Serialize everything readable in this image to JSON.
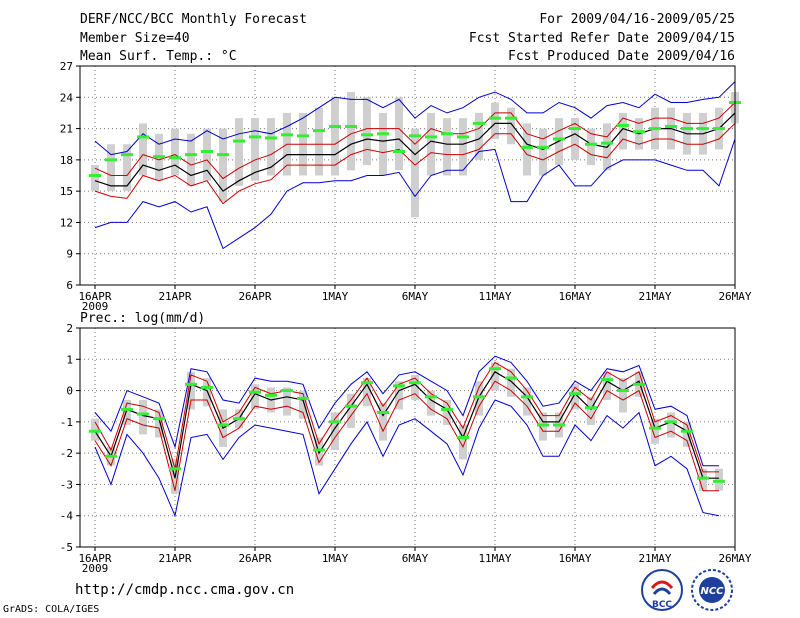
{
  "header": {
    "title": "DERF/NCC/BCC Monthly Forecast",
    "member_size": "Member Size=40",
    "var1": "Mean Surf. Temp.: °C",
    "period": "For 2009/04/16-2009/05/25",
    "refer_date": "Fcst Started Refer Date 2009/04/15",
    "produced_date": "Fcst Produced Date 2009/04/16"
  },
  "panel2_label": "Prec.: log(mm/d)",
  "footer": {
    "url": "http://cmdp.ncc.cma.gov.cn",
    "grads": "GrADS: COLA/IGES",
    "logo_left": "BCC",
    "logo_right": "NCC"
  },
  "colors": {
    "mean": "#000000",
    "spread": "#cc0000",
    "envelope": "#0000cc",
    "box": "#cfcfcf",
    "marker": "#33ee33"
  },
  "chart_data": [
    {
      "type": "line",
      "title": "Mean Surf. Temp.: °C",
      "x_tick_labels": [
        "16APR",
        "21APR",
        "26APR",
        "1MAY",
        "6MAY",
        "11MAY",
        "16MAY",
        "21MAY",
        "26MAY"
      ],
      "x_year_label": "2009",
      "ylim": [
        6,
        27
      ],
      "y_ticks": [
        6,
        9,
        12,
        15,
        18,
        21,
        24,
        27
      ],
      "grid": true,
      "series": [
        {
          "name": "ensemble_mean",
          "values": [
            16,
            15.5,
            15.5,
            17.5,
            17,
            17.5,
            16.5,
            17,
            15,
            16,
            16.8,
            17.3,
            18.5,
            18.5,
            18.5,
            18.5,
            19.5,
            20,
            19.8,
            20,
            18.5,
            19.8,
            19.5,
            19.5,
            20,
            21.5,
            21.5,
            19.5,
            19,
            19.8,
            20.5,
            19.5,
            19.2,
            21,
            20.5,
            21,
            21,
            20.5,
            20.5,
            21,
            22.5
          ]
        },
        {
          "name": "mean_plus_spread",
          "values": [
            17.2,
            16.5,
            16.5,
            18.5,
            18,
            18.5,
            17.5,
            18,
            16.2,
            17.2,
            18,
            18.5,
            19.5,
            19.5,
            19.5,
            19.5,
            20.5,
            21,
            21,
            21,
            19.5,
            21,
            20.5,
            20.5,
            21,
            22.5,
            22.5,
            20.5,
            20,
            20.8,
            21.5,
            20.5,
            20.2,
            22,
            21.5,
            22,
            22,
            21.5,
            21.5,
            22,
            23.5
          ]
        },
        {
          "name": "mean_minus_spread",
          "values": [
            15,
            14.5,
            14.3,
            16.5,
            16,
            16.5,
            15.5,
            16,
            13.8,
            15,
            15.7,
            16.1,
            17.5,
            17.5,
            17.5,
            17.5,
            18.5,
            19,
            18.7,
            19,
            17.5,
            18.7,
            18.5,
            18.5,
            19,
            20.5,
            20.5,
            18.5,
            18,
            18.8,
            19.5,
            18.5,
            18.2,
            20,
            19.5,
            20,
            20,
            19.5,
            19.5,
            20,
            21.5
          ]
        },
        {
          "name": "ensemble_max",
          "values": [
            19.8,
            18.5,
            18.8,
            20.5,
            19.5,
            20,
            19.8,
            20.8,
            20,
            20.5,
            20.8,
            20.5,
            21.2,
            22,
            23,
            24,
            23.8,
            23.8,
            23,
            23.8,
            22,
            23.2,
            22.5,
            23,
            24,
            24.5,
            23.8,
            22.5,
            22.5,
            23.5,
            23,
            22,
            23.2,
            23.5,
            23,
            24.3,
            23.5,
            23.5,
            23.8,
            24,
            25.5
          ]
        },
        {
          "name": "ensemble_min",
          "values": [
            11.5,
            12,
            12,
            14,
            13.5,
            14,
            13,
            13.5,
            9.5,
            10.5,
            11.5,
            12.8,
            15,
            15.8,
            15.8,
            16,
            16,
            16.5,
            16.5,
            16.8,
            14.5,
            16.5,
            17,
            17,
            18.8,
            19,
            14,
            14,
            16.5,
            17.5,
            15.5,
            15.5,
            17.2,
            18,
            18,
            18,
            17.5,
            17,
            17,
            15.5,
            20
          ]
        },
        {
          "name": "observed_marker",
          "values": [
            16.5,
            18,
            18.5,
            20.2,
            18.3,
            18.2,
            18.5,
            18.8,
            18.5,
            19.8,
            20.2,
            20.1,
            20.4,
            20.3,
            20.8,
            21.2,
            21.2,
            20.4,
            20.5,
            18.8,
            20.3,
            20.2,
            20.5,
            20.2,
            21.5,
            22,
            22,
            19.2,
            19.2,
            20,
            21,
            19.5,
            19.6,
            21.3,
            20.7,
            21,
            21.2,
            21,
            21,
            21,
            23.5
          ]
        },
        {
          "name": "box_upper",
          "values": [
            17.5,
            19.5,
            19.5,
            21.5,
            20.5,
            21,
            20.5,
            21,
            21,
            22,
            22,
            22,
            22.5,
            22.5,
            23,
            24,
            24.5,
            24,
            22.5,
            24,
            21,
            22.5,
            22,
            22,
            22.5,
            23.5,
            23,
            21.5,
            21,
            22,
            22,
            21,
            21.5,
            22.5,
            22,
            23,
            23,
            22.5,
            22.5,
            23,
            24.5
          ]
        },
        {
          "name": "box_lower",
          "values": [
            15,
            15,
            15,
            16.5,
            16,
            16.5,
            15.5,
            16,
            14,
            15.5,
            16,
            16.5,
            16.5,
            16.5,
            16.5,
            16.5,
            17,
            17.5,
            16.5,
            17,
            12.5,
            16.5,
            16.5,
            16.5,
            18,
            20,
            19.5,
            16.5,
            16.5,
            17.5,
            18,
            17.5,
            17,
            19,
            19,
            19,
            19,
            18.5,
            18.5,
            19,
            21.5
          ]
        }
      ]
    },
    {
      "type": "line",
      "title": "Prec.: log(mm/d)",
      "x_tick_labels": [
        "16APR",
        "21APR",
        "26APR",
        "1MAY",
        "6MAY",
        "11MAY",
        "16MAY",
        "21MAY",
        "26MAY"
      ],
      "x_year_label": "2009",
      "ylim": [
        -5,
        2
      ],
      "y_ticks": [
        -5,
        -4,
        -3,
        -2,
        -1,
        0,
        1,
        2
      ],
      "grid": true,
      "series": [
        {
          "name": "ensemble_mean",
          "values": [
            -1.3,
            -2.1,
            -0.6,
            -0.8,
            -0.9,
            -2.8,
            0.2,
            0,
            -1.2,
            -0.9,
            -0.1,
            -0.3,
            -0.2,
            -0.3,
            -2,
            -1.2,
            -0.5,
            0.2,
            -0.8,
            0,
            0.2,
            -0.3,
            -0.6,
            -1.5,
            -0.2,
            0.6,
            0.3,
            -0.2,
            -1,
            -1,
            -0.1,
            -0.6,
            0.3,
            0,
            0.3,
            -1.2,
            -1,
            -1.3,
            -2.8,
            -2.8
          ]
        },
        {
          "name": "mean_plus_spread",
          "values": [
            -1,
            -1.9,
            -0.4,
            -0.5,
            -0.7,
            -2.5,
            0.5,
            0.3,
            -1,
            -0.7,
            0.1,
            -0.1,
            0,
            -0.1,
            -1.7,
            -0.9,
            -0.3,
            0.4,
            -0.5,
            0.2,
            0.4,
            -0.1,
            -0.4,
            -1.2,
            0.1,
            0.9,
            0.6,
            0,
            -0.8,
            -0.8,
            0.1,
            -0.3,
            0.6,
            0.3,
            0.6,
            -1,
            -0.8,
            -1.1,
            -2.6,
            -2.6
          ]
        },
        {
          "name": "mean_minus_spread",
          "values": [
            -1.6,
            -2.4,
            -0.9,
            -1.1,
            -1.2,
            -3.2,
            -0.3,
            -0.3,
            -1.5,
            -1.2,
            -0.5,
            -0.6,
            -0.5,
            -0.7,
            -2.3,
            -1.5,
            -0.8,
            -0.1,
            -1.3,
            -0.3,
            -0.1,
            -0.6,
            -0.9,
            -1.8,
            -0.5,
            0.3,
            0,
            -0.5,
            -1.3,
            -1.3,
            -0.4,
            -0.9,
            0,
            -0.3,
            0,
            -1.5,
            -1.3,
            -1.6,
            -3.2,
            -3.2
          ]
        },
        {
          "name": "ensemble_max",
          "values": [
            -0.7,
            -1.3,
            0,
            -0.2,
            -0.4,
            -1.8,
            0.7,
            0.6,
            -0.3,
            -0.4,
            0.4,
            0.3,
            0.3,
            0.2,
            -1.2,
            -0.4,
            0.2,
            0.6,
            -0.1,
            0.5,
            0.6,
            0.3,
            0,
            -0.8,
            0.6,
            1.1,
            0.9,
            0.3,
            -0.5,
            -0.4,
            0.3,
            0,
            0.7,
            0.6,
            0.8,
            -0.6,
            -0.5,
            -0.8,
            -2.4,
            -2.4
          ]
        },
        {
          "name": "ensemble_min",
          "values": [
            -1.8,
            -3,
            -1.4,
            -2,
            -2.8,
            -4,
            -1.5,
            -1.4,
            -2.2,
            -1.5,
            -1.1,
            -1.2,
            -1.3,
            -1.4,
            -3.3,
            -2.5,
            -1.7,
            -1,
            -2.1,
            -1.1,
            -0.9,
            -1.3,
            -1.7,
            -2.7,
            -1.2,
            -0.3,
            -0.5,
            -1.1,
            -2.1,
            -2.1,
            -1.1,
            -1.6,
            -0.8,
            -1.2,
            -0.7,
            -2.4,
            -2.1,
            -2.5,
            -3.9,
            -4
          ]
        },
        {
          "name": "observed_marker",
          "values": [
            -1.3,
            -2.1,
            -0.6,
            -0.75,
            -0.9,
            -2.5,
            0.2,
            0.1,
            -1.1,
            -0.9,
            -0.05,
            -0.15,
            0,
            -0.25,
            -1.9,
            -1,
            -0.5,
            0.25,
            -0.7,
            0.15,
            0.25,
            -0.2,
            -0.6,
            -1.5,
            -0.2,
            0.7,
            0.4,
            -0.2,
            -1.1,
            -1.1,
            -0.1,
            -0.55,
            0.35,
            0,
            0.2,
            -1.2,
            -1,
            -1.3,
            -2.8,
            -2.9
          ]
        },
        {
          "name": "box_upper",
          "values": [
            -0.9,
            -1.8,
            -0.3,
            -0.3,
            -0.6,
            -2.2,
            0.6,
            0.4,
            -0.6,
            -0.6,
            0.2,
            0.1,
            0.1,
            0,
            -1.5,
            -0.7,
            -0.1,
            0.4,
            -0.4,
            0.3,
            0.5,
            0,
            -0.3,
            -1.1,
            0.3,
            0.9,
            0.7,
            0.1,
            -0.7,
            -0.7,
            0.2,
            -0.2,
            0.6,
            0.4,
            0.6,
            -0.9,
            -0.7,
            -1,
            -2.5,
            -2.5
          ]
        },
        {
          "name": "box_lower",
          "values": [
            -1.6,
            -2.4,
            -1.1,
            -1.4,
            -1.5,
            -3.3,
            -0.6,
            -0.5,
            -1.8,
            -1.2,
            -0.6,
            -0.7,
            -0.8,
            -0.9,
            -2.4,
            -1.9,
            -1.2,
            -0.5,
            -1.6,
            -0.6,
            -0.3,
            -0.8,
            -1.1,
            -2.2,
            -0.8,
            0,
            -0.2,
            -0.8,
            -1.6,
            -1.5,
            -0.6,
            -1.1,
            -0.3,
            -0.7,
            -0.2,
            -1.7,
            -1.5,
            -1.8,
            -3.2,
            -3.2
          ]
        }
      ]
    }
  ]
}
